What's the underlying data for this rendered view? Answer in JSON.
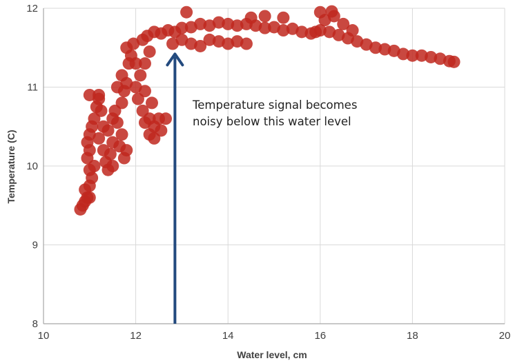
{
  "chart_data": {
    "type": "scatter",
    "title": "",
    "xlabel": "Water level, cm",
    "ylabel": "Temperature (C)",
    "xlim": [
      10,
      20
    ],
    "ylim": [
      8,
      12
    ],
    "x_ticks": [
      "10",
      "12",
      "14",
      "16",
      "18",
      "20"
    ],
    "y_ticks": [
      "8",
      "9",
      "10",
      "11",
      "12"
    ],
    "grid": true,
    "legend": "none",
    "colors": {
      "points": "#C0281E",
      "arrow": "#234A7E",
      "grid": "#D9D9D9",
      "axis": "#A6A6A6"
    },
    "series": [
      {
        "points": [
          [
            10.8,
            9.45
          ],
          [
            10.85,
            9.5
          ],
          [
            10.9,
            9.55
          ],
          [
            10.95,
            9.6
          ],
          [
            11.0,
            9.6
          ],
          [
            10.9,
            9.7
          ],
          [
            11.0,
            9.75
          ],
          [
            11.05,
            9.85
          ],
          [
            11.0,
            9.95
          ],
          [
            11.1,
            10.0
          ],
          [
            10.95,
            10.1
          ],
          [
            11.0,
            10.2
          ],
          [
            10.95,
            10.3
          ],
          [
            11.0,
            10.4
          ],
          [
            11.05,
            10.5
          ],
          [
            11.1,
            10.6
          ],
          [
            11.15,
            10.75
          ],
          [
            11.2,
            10.85
          ],
          [
            11.25,
            10.7
          ],
          [
            11.3,
            10.5
          ],
          [
            11.2,
            10.35
          ],
          [
            11.3,
            10.2
          ],
          [
            11.35,
            10.05
          ],
          [
            11.4,
            9.95
          ],
          [
            11.5,
            10.0
          ],
          [
            11.45,
            10.15
          ],
          [
            11.5,
            10.3
          ],
          [
            11.4,
            10.45
          ],
          [
            11.5,
            10.6
          ],
          [
            11.55,
            10.7
          ],
          [
            11.6,
            10.55
          ],
          [
            11.7,
            10.4
          ],
          [
            11.65,
            10.25
          ],
          [
            11.75,
            10.1
          ],
          [
            11.8,
            10.2
          ],
          [
            11.7,
            10.8
          ],
          [
            11.75,
            10.95
          ],
          [
            11.8,
            11.05
          ],
          [
            11.7,
            11.15
          ],
          [
            11.85,
            11.3
          ],
          [
            11.9,
            11.4
          ],
          [
            11.8,
            11.5
          ],
          [
            11.95,
            11.55
          ],
          [
            12.0,
            11.3
          ],
          [
            12.1,
            11.15
          ],
          [
            12.0,
            11.0
          ],
          [
            12.05,
            10.85
          ],
          [
            12.15,
            10.7
          ],
          [
            12.2,
            10.55
          ],
          [
            12.3,
            10.4
          ],
          [
            12.4,
            10.35
          ],
          [
            12.55,
            10.45
          ],
          [
            12.65,
            10.6
          ],
          [
            12.2,
            10.95
          ],
          [
            12.35,
            10.8
          ],
          [
            12.3,
            10.6
          ],
          [
            12.2,
            11.3
          ],
          [
            12.3,
            11.45
          ],
          [
            12.15,
            11.6
          ],
          [
            12.25,
            11.65
          ],
          [
            12.4,
            11.7
          ],
          [
            12.55,
            11.68
          ],
          [
            12.7,
            11.72
          ],
          [
            12.85,
            11.7
          ],
          [
            13.0,
            11.75
          ],
          [
            13.2,
            11.76
          ],
          [
            13.4,
            11.8
          ],
          [
            13.6,
            11.78
          ],
          [
            13.8,
            11.82
          ],
          [
            14.0,
            11.8
          ],
          [
            14.2,
            11.78
          ],
          [
            14.4,
            11.8
          ],
          [
            14.6,
            11.78
          ],
          [
            14.8,
            11.75
          ],
          [
            15.0,
            11.76
          ],
          [
            15.2,
            11.72
          ],
          [
            15.4,
            11.74
          ],
          [
            15.6,
            11.7
          ],
          [
            15.8,
            11.68
          ],
          [
            16.0,
            11.72
          ],
          [
            16.2,
            11.7
          ],
          [
            16.4,
            11.66
          ],
          [
            16.6,
            11.62
          ],
          [
            16.8,
            11.58
          ],
          [
            17.0,
            11.54
          ],
          [
            17.2,
            11.5
          ],
          [
            17.4,
            11.48
          ],
          [
            17.6,
            11.46
          ],
          [
            17.8,
            11.42
          ],
          [
            18.0,
            11.4
          ],
          [
            18.2,
            11.4
          ],
          [
            18.4,
            11.38
          ],
          [
            18.6,
            11.36
          ],
          [
            18.8,
            11.33
          ],
          [
            18.9,
            11.32
          ],
          [
            12.8,
            11.55
          ],
          [
            13.0,
            11.6
          ],
          [
            13.2,
            11.55
          ],
          [
            13.4,
            11.52
          ],
          [
            13.6,
            11.6
          ],
          [
            13.8,
            11.58
          ],
          [
            14.0,
            11.55
          ],
          [
            14.2,
            11.58
          ],
          [
            14.4,
            11.55
          ],
          [
            15.9,
            11.7
          ],
          [
            16.1,
            11.85
          ],
          [
            16.3,
            11.9
          ],
          [
            16.5,
            11.8
          ],
          [
            16.7,
            11.72
          ],
          [
            16.0,
            11.95
          ],
          [
            16.25,
            11.96
          ],
          [
            13.1,
            11.95
          ],
          [
            14.5,
            11.88
          ],
          [
            14.8,
            11.9
          ],
          [
            15.2,
            11.88
          ],
          [
            11.0,
            10.9
          ],
          [
            11.2,
            10.9
          ],
          [
            11.6,
            11.0
          ],
          [
            12.4,
            10.5
          ],
          [
            12.5,
            10.6
          ]
        ]
      }
    ],
    "annotation": {
      "text_line1": "Temperature signal becomes",
      "text_line2": "noisy below this water level",
      "arrow_x": 12.85,
      "arrow_from_y": 8,
      "arrow_to_y": 11.42
    }
  }
}
